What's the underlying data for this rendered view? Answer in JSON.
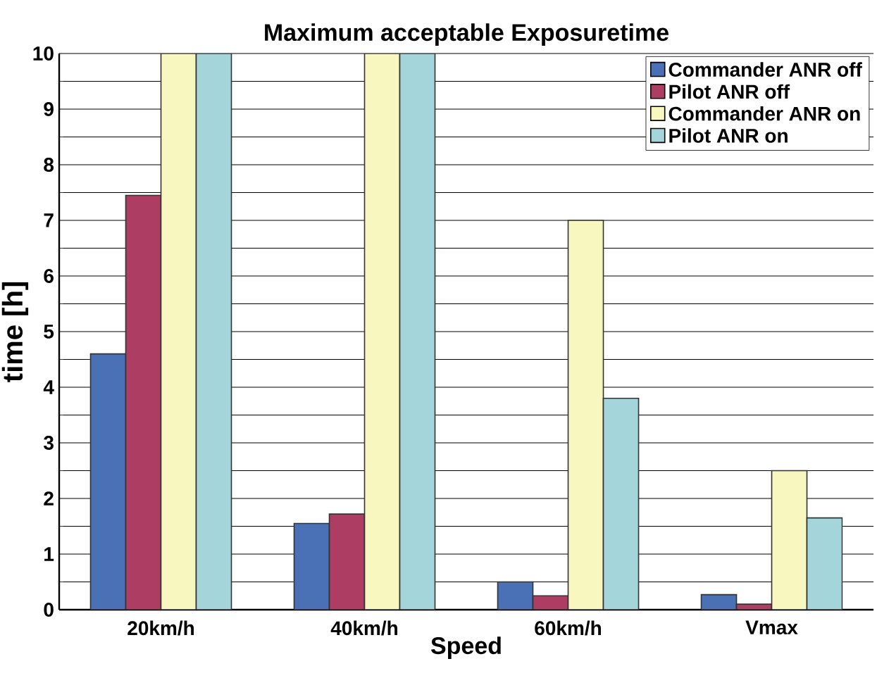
{
  "chart_data": {
    "type": "bar",
    "title": "Maximum acceptable Exposuretime",
    "xlabel": "Speed",
    "ylabel": "time [h]",
    "categories": [
      "20km/h",
      "40km/h",
      "60km/h",
      "Vmax"
    ],
    "series": [
      {
        "name": "Commander  ANR off",
        "color": "#4a70b5",
        "values": [
          4.6,
          1.55,
          0.5,
          0.27
        ]
      },
      {
        "name": "Pilot  ANR off",
        "color": "#ad3d62",
        "values": [
          7.45,
          1.72,
          0.25,
          0.1
        ]
      },
      {
        "name": "Commander  ANR on",
        "color": "#f7f7bf",
        "values": [
          10,
          10,
          7.0,
          2.5
        ]
      },
      {
        "name": "Pilot  ANR on",
        "color": "#a3d5da",
        "values": [
          10,
          10,
          3.8,
          1.65
        ]
      }
    ],
    "ylim": [
      0,
      10
    ],
    "yticks": [
      0,
      1,
      2,
      3,
      4,
      5,
      6,
      7,
      8,
      9,
      10
    ],
    "grid": "y",
    "legend": "top right"
  }
}
